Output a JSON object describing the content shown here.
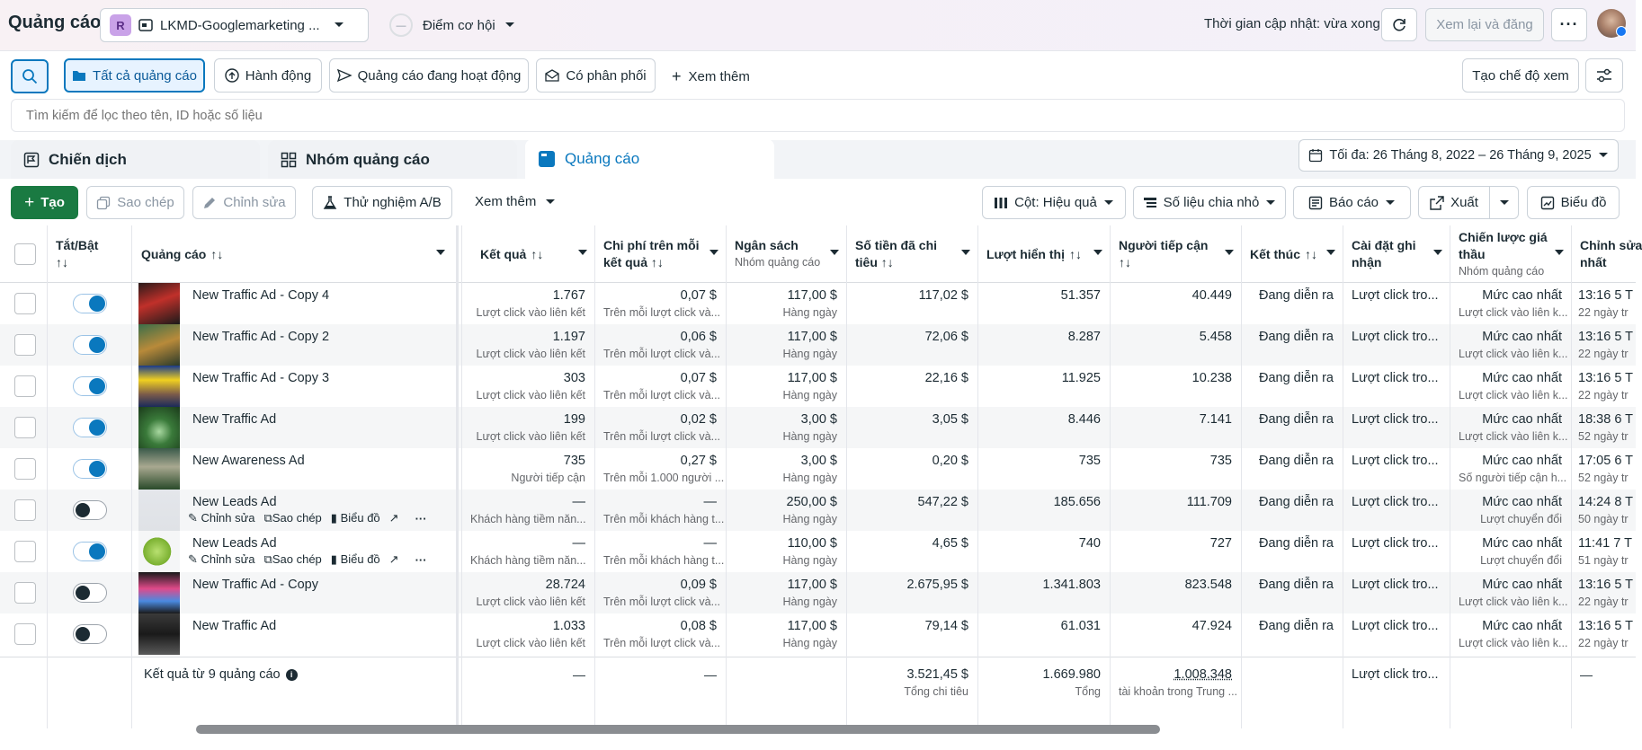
{
  "header": {
    "title": "Quảng cáo",
    "account_badge": "R",
    "account_name": "LKMD-Googlemarketing ...",
    "opportunity_label": "Điểm cơ hội",
    "update_status": "Thời gian cập nhật: vừa xong",
    "review_publish_label": "Xem lại và đăng"
  },
  "filters": {
    "items": [
      "Tất cả quảng cáo",
      "Hành động",
      "Quảng cáo đang hoạt động",
      "Có phân phối"
    ],
    "more_label": "Xem thêm",
    "create_view_label": "Tạo chế độ xem",
    "search_placeholder": "Tìm kiếm để lọc theo tên, ID hoặc số liệu"
  },
  "tabs": {
    "campaign": "Chiến dịch",
    "adset": "Nhóm quảng cáo",
    "ads": "Quảng cáo"
  },
  "date_range": "Tối đa: 26 Tháng 8, 2022 – 26 Tháng 9, 2025",
  "toolbar": {
    "create": "Tạo",
    "copy": "Sao chép",
    "edit": "Chỉnh sửa",
    "ab_test": "Thử nghiệm A/B",
    "more": "Xem thêm",
    "columns": "Cột: Hiệu quả",
    "breakdown": "Số liệu chia nhỏ",
    "reports": "Báo cáo",
    "export": "Xuất",
    "charts": "Biểu đồ"
  },
  "columns": {
    "toggle": "Tắt/Bật",
    "ad": "Quảng cáo",
    "results": "Kết quả",
    "cost_per_result_1": "Chi phí trên mỗi",
    "cost_per_result_2": "kết quả",
    "budget": "Ngân sách",
    "budget_sub": "Nhóm quảng cáo",
    "spent_1": "Số tiền đã chi",
    "spent_2": "tiêu",
    "impressions": "Lượt hiển thị",
    "reach_1": "Người tiếp cận",
    "end": "Kết thúc",
    "attribution_1": "Cài đặt ghi",
    "attribution_2": "nhận",
    "bid_1": "Chiến lược giá",
    "bid_2": "thầu",
    "bid_sub": "Nhóm quảng cáo",
    "edited_1": "Chỉnh sửa",
    "edited_2": "nhất"
  },
  "row_actions": {
    "edit": "Chỉnh sửa",
    "copy": "Sao chép",
    "chart": "Biểu đồ"
  },
  "rows": [
    {
      "name": "New Traffic Ad - Copy 4",
      "on": true,
      "result": "1.767",
      "result_sub": "Lượt click vào liên kết",
      "cpr": "0,07 $",
      "cpr_sub": "Trên mỗi lượt click và...",
      "budget": "117,00 $",
      "budget_sub": "Hàng ngày",
      "spent": "117,02 $",
      "impr": "51.357",
      "reach": "40.449",
      "end": "Đang diễn ra",
      "attr": "Lượt click tro...",
      "bid": "Mức cao nhất",
      "bid_sub": "Lượt click vào liên k...",
      "edit": "13:16 5 T",
      "edit_sub": "22 ngày tr"
    },
    {
      "name": "New Traffic Ad - Copy 2",
      "on": true,
      "result": "1.197",
      "result_sub": "Lượt click vào liên kết",
      "cpr": "0,06 $",
      "cpr_sub": "Trên mỗi lượt click và...",
      "budget": "117,00 $",
      "budget_sub": "Hàng ngày",
      "spent": "72,06 $",
      "impr": "8.287",
      "reach": "5.458",
      "end": "Đang diễn ra",
      "attr": "Lượt click tro...",
      "bid": "Mức cao nhất",
      "bid_sub": "Lượt click vào liên k...",
      "edit": "13:16 5 T",
      "edit_sub": "22 ngày tr"
    },
    {
      "name": "New Traffic Ad - Copy 3",
      "on": true,
      "result": "303",
      "result_sub": "Lượt click vào liên kết",
      "cpr": "0,07 $",
      "cpr_sub": "Trên mỗi lượt click và...",
      "budget": "117,00 $",
      "budget_sub": "Hàng ngày",
      "spent": "22,16 $",
      "impr": "11.925",
      "reach": "10.238",
      "end": "Đang diễn ra",
      "attr": "Lượt click tro...",
      "bid": "Mức cao nhất",
      "bid_sub": "Lượt click vào liên k...",
      "edit": "13:16 5 T",
      "edit_sub": "22 ngày tr"
    },
    {
      "name": "New Traffic Ad",
      "on": true,
      "result": "199",
      "result_sub": "Lượt click vào liên kết",
      "cpr": "0,02 $",
      "cpr_sub": "Trên mỗi lượt click và...",
      "budget": "3,00 $",
      "budget_sub": "Hàng ngày",
      "spent": "3,05 $",
      "impr": "8.446",
      "reach": "7.141",
      "end": "Đang diễn ra",
      "attr": "Lượt click tro...",
      "bid": "Mức cao nhất",
      "bid_sub": "Lượt click vào liên k...",
      "edit": "18:38 6 T",
      "edit_sub": "52 ngày tr"
    },
    {
      "name": "New Awareness Ad",
      "on": true,
      "result": "735",
      "result_sub": "Người tiếp cận",
      "cpr": "0,27 $",
      "cpr_sub": "Trên mỗi 1.000 người ...",
      "budget": "3,00 $",
      "budget_sub": "Hàng ngày",
      "spent": "0,20 $",
      "impr": "735",
      "reach": "735",
      "end": "Đang diễn ra",
      "attr": "Lượt click tro...",
      "bid": "Mức cao nhất",
      "bid_sub": "Số người tiếp cận h...",
      "edit": "17:05 6 T",
      "edit_sub": "52 ngày tr"
    },
    {
      "name": "New Leads Ad",
      "on": false,
      "result": "—",
      "result_sub": "Khách hàng tiềm năn...",
      "cpr": "—",
      "cpr_sub": "Trên mỗi khách hàng t...",
      "budget": "250,00 $",
      "budget_sub": "Hàng ngày",
      "spent": "547,22 $",
      "impr": "185.656",
      "reach": "111.709",
      "end": "Đang diễn ra",
      "attr": "Lượt click tro...",
      "bid": "Mức cao nhất",
      "bid_sub": "Lượt chuyển đổi",
      "edit": "14:24 8 T",
      "edit_sub": "50 ngày tr"
    },
    {
      "name": "New Leads Ad",
      "on": true,
      "result": "—",
      "result_sub": "Khách hàng tiềm năn...",
      "cpr": "—",
      "cpr_sub": "Trên mỗi khách hàng t...",
      "budget": "110,00 $",
      "budget_sub": "Hàng ngày",
      "spent": "4,65 $",
      "impr": "740",
      "reach": "727",
      "end": "Đang diễn ra",
      "attr": "Lượt click tro...",
      "bid": "Mức cao nhất",
      "bid_sub": "Lượt chuyển đổi",
      "edit": "11:41 7 T",
      "edit_sub": "51 ngày tr"
    },
    {
      "name": "New Traffic Ad - Copy",
      "on": false,
      "result": "28.724",
      "result_sub": "Lượt click vào liên kết",
      "cpr": "0,09 $",
      "cpr_sub": "Trên mỗi lượt click và...",
      "budget": "117,00 $",
      "budget_sub": "Hàng ngày",
      "spent": "2.675,95 $",
      "impr": "1.341.803",
      "reach": "823.548",
      "end": "Đang diễn ra",
      "attr": "Lượt click tro...",
      "bid": "Mức cao nhất",
      "bid_sub": "Lượt click vào liên k...",
      "edit": "13:16 5 T",
      "edit_sub": "22 ngày tr"
    },
    {
      "name": "New Traffic Ad",
      "on": false,
      "result": "1.033",
      "result_sub": "Lượt click vào liên kết",
      "cpr": "0,08 $",
      "cpr_sub": "Trên mỗi lượt click và...",
      "budget": "117,00 $",
      "budget_sub": "Hàng ngày",
      "spent": "79,14 $",
      "impr": "61.031",
      "reach": "47.924",
      "end": "Đang diễn ra",
      "attr": "Lượt click tro...",
      "bid": "Mức cao nhất",
      "bid_sub": "Lượt click vào liên k...",
      "edit": "13:16 5 T",
      "edit_sub": "22 ngày tr"
    }
  ],
  "footer": {
    "label": "Kết quả từ 9 quảng cáo",
    "result": "—",
    "cpr": "—",
    "spent": "3.521,45 $",
    "spent_sub": "Tổng chi tiêu",
    "impr": "1.669.980",
    "impr_sub": "Tổng",
    "reach": "1.008.348",
    "reach_sub": "tài khoản trong Trung ...",
    "attr": "Lượt click tro...",
    "edit": "—"
  },
  "colors": {
    "accent": "#0a78be",
    "create_button": "#1a7a42"
  }
}
